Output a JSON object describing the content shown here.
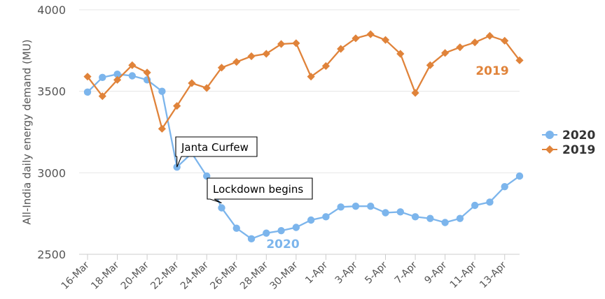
{
  "chart_data": {
    "type": "line",
    "title": "",
    "xlabel": "",
    "ylabel": "All-India daily energy demand (MU)",
    "ylim": [
      2500,
      4000
    ],
    "yticks": [
      2500,
      3000,
      3500,
      4000
    ],
    "xtick_labels": [
      "16-Mar",
      "18-Mar",
      "20-Mar",
      "22-Mar",
      "24-Mar",
      "26-Mar",
      "28-Mar",
      "30-Mar",
      "1-Apr",
      "3-Apr",
      "5-Apr",
      "7-Apr",
      "9-Apr",
      "11-Apr",
      "13-Apr"
    ],
    "x": [
      "16-Mar",
      "17-Mar",
      "18-Mar",
      "19-Mar",
      "20-Mar",
      "21-Mar",
      "22-Mar",
      "23-Mar",
      "24-Mar",
      "25-Mar",
      "26-Mar",
      "27-Mar",
      "28-Mar",
      "29-Mar",
      "30-Mar",
      "31-Mar",
      "1-Apr",
      "2-Apr",
      "3-Apr",
      "4-Apr",
      "5-Apr",
      "6-Apr",
      "7-Apr",
      "8-Apr",
      "9-Apr",
      "10-Apr",
      "11-Apr",
      "12-Apr",
      "13-Apr",
      "14-Apr"
    ],
    "grid": true,
    "legend": "right",
    "series": [
      {
        "name": "2020",
        "color": "#7cb5ec",
        "marker": "circle",
        "values": [
          3495,
          3585,
          3605,
          3595,
          3570,
          3500,
          3035,
          3120,
          2980,
          2785,
          2660,
          2595,
          2630,
          2645,
          2665,
          2710,
          2730,
          2790,
          2795,
          2795,
          2755,
          2760,
          2730,
          2720,
          2695,
          2720,
          2800,
          2820,
          2915,
          2980
        ]
      },
      {
        "name": "2019",
        "color": "#e0833a",
        "marker": "diamond",
        "values": [
          3590,
          3470,
          3570,
          3660,
          3615,
          3270,
          3410,
          3550,
          3520,
          3645,
          3680,
          3715,
          3730,
          3790,
          3795,
          3590,
          3655,
          3760,
          3825,
          3850,
          3815,
          3730,
          3490,
          3660,
          3735,
          3770,
          3800,
          3840,
          3810,
          3690
        ]
      }
    ],
    "series_labels": [
      "2020",
      "2019"
    ],
    "annotations": [
      {
        "text": "Janta Curfew",
        "x": "22-Mar",
        "y": 3035
      },
      {
        "text": "Lockdown begins",
        "x": "25-Mar",
        "y": 2785
      }
    ]
  }
}
